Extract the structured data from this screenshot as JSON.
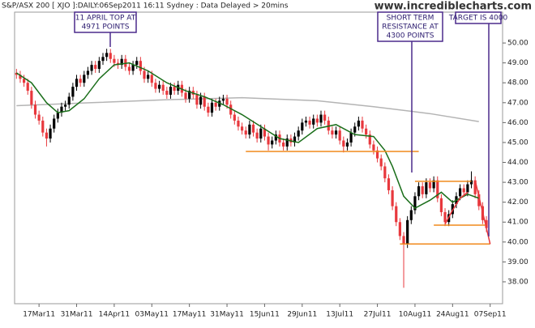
{
  "chart_data": {
    "type": "candlestick",
    "title": "S&P/ASX 200 [ XJO ]:DAILY:06Sep2011 16:11 Sydney : Data Delayed > 20mins",
    "watermark": "www.incrediblecharts.com",
    "up_color": "#000000",
    "down_color": "#e8383d",
    "grid": false,
    "xlim": [
      -0.5,
      129.3
    ],
    "ylim": [
      36.9,
      51.55
    ],
    "yticks": [
      {
        "value": 38,
        "label": "38.00"
      },
      {
        "value": 39,
        "label": "39.00"
      },
      {
        "value": 40,
        "label": "40.00"
      },
      {
        "value": 41,
        "label": "41.00"
      },
      {
        "value": 42,
        "label": "42.00"
      },
      {
        "value": 43,
        "label": "43.00"
      },
      {
        "value": 44,
        "label": "44.00"
      },
      {
        "value": 45,
        "label": "45.00"
      },
      {
        "value": 46,
        "label": "46.00"
      },
      {
        "value": 47,
        "label": "47.00"
      },
      {
        "value": 48,
        "label": "48.00"
      },
      {
        "value": 49,
        "label": "49.00"
      },
      {
        "value": 50,
        "label": "50.00"
      }
    ],
    "xticks": [
      {
        "value": 6,
        "label": "17Mar11"
      },
      {
        "value": 16,
        "label": "31Mar11"
      },
      {
        "value": 26,
        "label": "14Apr11"
      },
      {
        "value": 36,
        "label": "03May11"
      },
      {
        "value": 46,
        "label": "17May11"
      },
      {
        "value": 56,
        "label": "31May11"
      },
      {
        "value": 66,
        "label": "15Jun11"
      },
      {
        "value": 76,
        "label": "29Jun11"
      },
      {
        "value": 86,
        "label": "13Jul11"
      },
      {
        "value": 96,
        "label": "27Jul11"
      },
      {
        "value": 106,
        "label": "10Aug11"
      },
      {
        "value": 116,
        "label": "24Aug11"
      },
      {
        "value": 126,
        "label": "07Sep11"
      }
    ],
    "open": [
      48.5,
      48.4,
      48.2,
      48.0,
      47.6,
      46.9,
      46.4,
      46.1,
      45.5,
      45.2,
      45.7,
      46.2,
      46.5,
      46.8,
      46.9,
      47.3,
      47.8,
      48.2,
      48.0,
      48.4,
      48.6,
      48.9,
      48.7,
      49.1,
      49.3,
      49.5,
      49.2,
      49.0,
      48.9,
      49.2,
      48.8,
      48.6,
      48.9,
      49.1,
      48.6,
      48.2,
      48.4,
      48.0,
      47.7,
      47.9,
      47.6,
      47.4,
      47.8,
      47.6,
      47.9,
      47.5,
      47.2,
      47.6,
      47.4,
      46.9,
      47.3,
      46.8,
      46.5,
      47.0,
      46.8,
      47.1,
      47.2,
      46.9,
      46.4,
      46.1,
      45.8,
      45.6,
      45.4,
      45.9,
      45.5,
      45.2,
      45.7,
      45.3,
      44.9,
      45.1,
      45.4,
      45.0,
      44.8,
      45.2,
      45.0,
      45.3,
      45.6,
      46.0,
      46.1,
      45.9,
      46.2,
      46.0,
      46.4,
      46.1,
      45.6,
      45.4,
      45.6,
      45.1,
      44.8,
      45.0,
      45.5,
      45.8,
      46.1,
      45.7,
      45.4,
      44.9,
      44.6,
      44.2,
      43.8,
      43.2,
      42.6,
      41.8,
      41.0,
      40.3,
      39.9,
      41.1,
      41.6,
      42.3,
      42.8,
      42.4,
      43.0,
      42.7,
      43.1,
      42.2,
      41.5,
      41.0,
      41.4,
      41.9,
      42.3,
      42.7,
      42.5,
      42.9,
      43.1,
      42.4,
      41.8,
      41.1
    ],
    "high": [
      48.7,
      48.6,
      48.4,
      48.2,
      47.8,
      47.1,
      46.6,
      46.3,
      45.7,
      45.9,
      46.4,
      46.7,
      47.0,
      47.1,
      47.5,
      48.0,
      48.4,
      48.4,
      48.6,
      48.8,
      49.1,
      49.1,
      49.3,
      49.5,
      49.71,
      49.7,
      49.4,
      49.2,
      49.4,
      49.4,
      49.0,
      49.1,
      49.3,
      49.3,
      48.8,
      48.6,
      48.6,
      48.2,
      48.1,
      48.1,
      47.8,
      48.0,
      48.0,
      48.1,
      48.1,
      47.7,
      47.8,
      47.8,
      47.6,
      47.5,
      47.5,
      47.0,
      47.2,
      47.2,
      47.3,
      47.4,
      47.4,
      47.1,
      46.6,
      46.3,
      46.0,
      45.8,
      46.1,
      46.1,
      45.7,
      45.9,
      45.9,
      45.5,
      45.3,
      45.6,
      45.6,
      45.2,
      45.4,
      45.4,
      45.5,
      45.8,
      46.2,
      46.3,
      46.3,
      46.4,
      46.4,
      46.6,
      46.6,
      46.3,
      45.8,
      45.8,
      45.8,
      45.3,
      45.2,
      45.7,
      46.0,
      46.3,
      46.3,
      45.9,
      45.6,
      45.1,
      44.8,
      44.4,
      44.0,
      43.4,
      42.8,
      42.0,
      41.2,
      40.5,
      41.3,
      41.8,
      42.5,
      43.0,
      43.0,
      43.2,
      43.2,
      43.3,
      43.3,
      42.4,
      41.7,
      41.6,
      42.1,
      42.5,
      42.9,
      42.9,
      43.1,
      43.55,
      43.3,
      42.6,
      42.0,
      41.3
    ],
    "low": [
      48.2,
      48.0,
      47.8,
      47.4,
      46.7,
      46.2,
      45.9,
      45.3,
      44.8,
      45.0,
      45.5,
      46.0,
      46.3,
      46.6,
      46.7,
      47.1,
      47.6,
      47.8,
      47.8,
      48.2,
      48.4,
      48.5,
      48.5,
      48.9,
      49.1,
      49.0,
      48.8,
      48.7,
      48.7,
      48.6,
      48.4,
      48.4,
      48.7,
      48.4,
      48.0,
      48.0,
      47.8,
      47.5,
      47.5,
      47.4,
      47.2,
      47.2,
      47.4,
      47.4,
      47.3,
      47.0,
      47.0,
      47.2,
      46.7,
      46.7,
      46.6,
      46.3,
      46.3,
      46.6,
      46.6,
      46.9,
      46.7,
      46.2,
      45.9,
      45.6,
      45.4,
      45.2,
      45.2,
      45.3,
      45.0,
      45.0,
      45.1,
      44.6,
      44.7,
      44.9,
      44.8,
      44.6,
      44.6,
      44.8,
      44.8,
      45.1,
      45.4,
      45.8,
      45.7,
      45.7,
      45.8,
      45.8,
      45.9,
      45.4,
      45.2,
      45.2,
      44.9,
      44.5,
      44.6,
      44.8,
      45.3,
      45.6,
      45.5,
      45.2,
      44.7,
      44.4,
      44.0,
      43.6,
      43.0,
      42.4,
      41.6,
      40.8,
      40.1,
      37.7,
      39.7,
      40.9,
      41.4,
      42.1,
      42.2,
      42.2,
      42.5,
      42.5,
      42.0,
      41.3,
      40.8,
      40.8,
      41.2,
      41.7,
      42.1,
      42.3,
      42.3,
      42.7,
      42.2,
      41.6,
      40.9,
      40.5
    ],
    "close": [
      48.4,
      48.2,
      48.0,
      47.6,
      46.9,
      46.4,
      46.1,
      45.5,
      45.2,
      45.7,
      46.2,
      46.5,
      46.8,
      46.9,
      47.3,
      47.8,
      48.2,
      48.0,
      48.4,
      48.6,
      48.9,
      48.7,
      49.1,
      49.3,
      49.5,
      49.2,
      49.0,
      48.9,
      49.2,
      48.8,
      48.6,
      48.9,
      49.1,
      48.6,
      48.2,
      48.4,
      48.0,
      47.7,
      47.9,
      47.6,
      47.4,
      47.8,
      47.6,
      47.9,
      47.5,
      47.2,
      47.6,
      47.4,
      46.9,
      47.3,
      46.8,
      46.5,
      47.0,
      46.8,
      47.1,
      47.2,
      46.9,
      46.4,
      46.1,
      45.8,
      45.6,
      45.4,
      45.9,
      45.5,
      45.2,
      45.7,
      45.3,
      44.9,
      45.1,
      45.4,
      45.0,
      44.8,
      45.2,
      45.0,
      45.3,
      45.6,
      46.0,
      46.1,
      45.9,
      46.2,
      46.0,
      46.4,
      46.1,
      45.6,
      45.4,
      45.6,
      45.1,
      44.8,
      45.0,
      45.5,
      45.8,
      46.1,
      45.7,
      45.4,
      44.9,
      44.6,
      44.2,
      43.8,
      43.2,
      42.6,
      41.8,
      41.0,
      40.3,
      39.9,
      41.1,
      41.6,
      42.3,
      42.8,
      42.4,
      43.0,
      42.7,
      43.1,
      42.2,
      41.5,
      41.0,
      41.4,
      41.9,
      42.3,
      42.7,
      42.5,
      42.9,
      43.1,
      42.4,
      41.8,
      41.1,
      40.7
    ],
    "lines": [
      {
        "color": "#b4b4b4",
        "x": [
          0,
          20,
          40,
          60,
          80,
          95,
          110,
          123
        ],
        "values": [
          46.85,
          47.0,
          47.15,
          47.25,
          47.1,
          46.8,
          46.45,
          46.05
        ]
      },
      {
        "color": "#1a6e1a",
        "x": [
          0,
          4,
          8,
          11,
          14,
          18,
          22,
          26,
          30,
          35,
          40,
          45,
          50,
          55,
          60,
          65,
          70,
          75,
          80,
          85,
          90,
          95,
          98,
          100,
          103,
          106,
          110,
          113,
          116,
          120,
          123
        ],
        "values": [
          48.5,
          48.0,
          47.0,
          46.5,
          46.6,
          47.2,
          48.2,
          48.9,
          49.0,
          48.6,
          48.0,
          47.6,
          47.3,
          46.9,
          46.4,
          45.8,
          45.2,
          45.0,
          45.7,
          45.9,
          45.4,
          45.3,
          44.6,
          43.8,
          42.3,
          41.7,
          42.1,
          42.5,
          42.0,
          42.4,
          42.2
        ]
      },
      {
        "color": "#e8383d",
        "x": [
          114,
          116,
          118,
          120
        ],
        "values": [
          40.9,
          41.6,
          42.2,
          42.5
        ]
      },
      {
        "color": "#f08a1c",
        "x": [
          61,
          107
        ],
        "values": [
          44.55,
          44.55
        ]
      },
      {
        "color": "#f08a1c",
        "x": [
          106,
          121
        ],
        "values": [
          43.05,
          43.05
        ]
      },
      {
        "color": "#f08a1c",
        "x": [
          111,
          125
        ],
        "values": [
          40.85,
          40.85
        ]
      },
      {
        "color": "#f08a1c",
        "x": [
          102,
          126
        ],
        "values": [
          39.9,
          39.9
        ]
      },
      {
        "color": "#e8383d",
        "x": [
          122,
          126
        ],
        "values": [
          43.1,
          39.9
        ]
      }
    ],
    "annotations": [
      {
        "lines": [
          "11 APRIL TOP AT",
          "4971 POINTS"
        ]
      },
      {
        "lines": [
          "SHORT TERM",
          "RESISTANCE AT",
          "4300 POINTS"
        ]
      },
      {
        "lines": [
          "TARGET IS 4000"
        ]
      }
    ]
  }
}
